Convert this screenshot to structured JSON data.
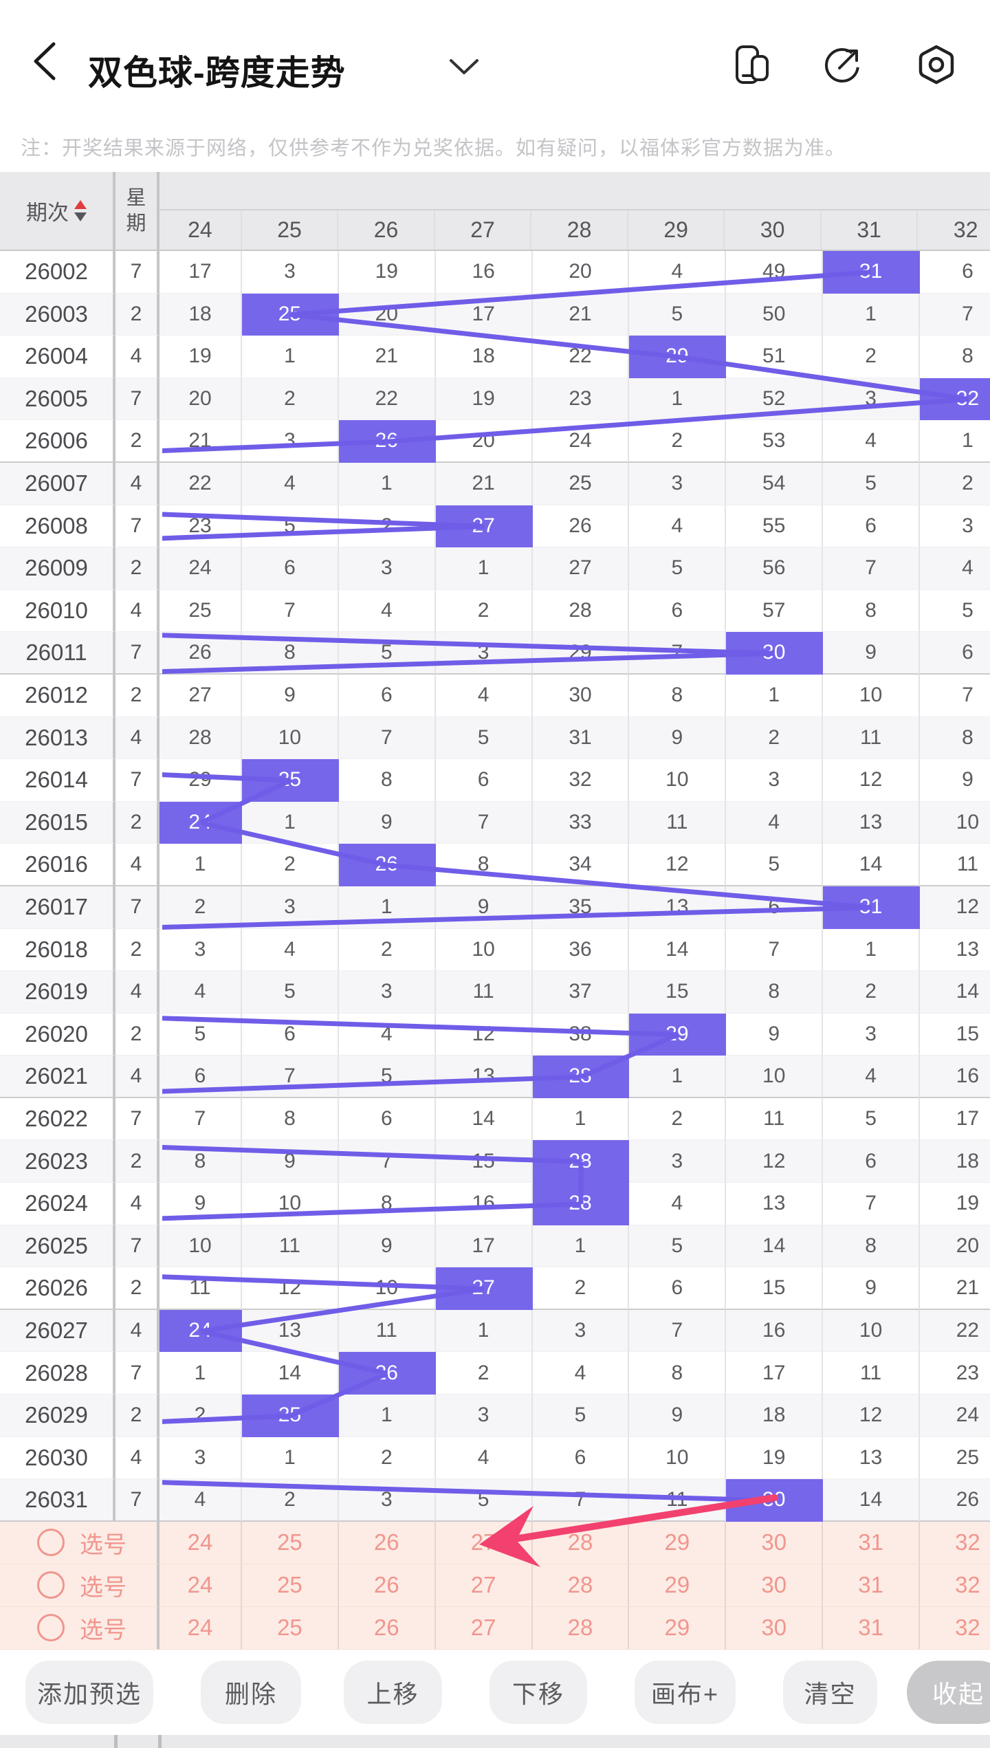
{
  "topbar": {
    "title": "双色球-跨度走势",
    "icons": [
      {
        "name": "cards-icon"
      },
      {
        "name": "share-icon"
      },
      {
        "name": "settings-icon"
      }
    ]
  },
  "note": "注：开奖结果来源于网络，仅供参考不作为兑奖依据。如有疑问，以福体彩官方数据为准。",
  "table": {
    "period_header": "期次",
    "week_header": "星期",
    "columns": [
      "24",
      "25",
      "26",
      "27",
      "28",
      "29",
      "30",
      "31",
      "32"
    ],
    "group_size": 5,
    "rows": [
      {
        "period": "26002",
        "week": "7",
        "cells": [
          "17",
          "3",
          "19",
          "16",
          "20",
          "4",
          "49",
          "31",
          "6"
        ],
        "hit": 31
      },
      {
        "period": "26003",
        "week": "2",
        "cells": [
          "18",
          "25",
          "20",
          "17",
          "21",
          "5",
          "50",
          "1",
          "7"
        ],
        "hit": 25
      },
      {
        "period": "26004",
        "week": "4",
        "cells": [
          "19",
          "1",
          "21",
          "18",
          "22",
          "29",
          "51",
          "2",
          "8"
        ],
        "hit": 29
      },
      {
        "period": "26005",
        "week": "7",
        "cells": [
          "20",
          "2",
          "22",
          "19",
          "23",
          "1",
          "52",
          "3",
          "32"
        ],
        "hit": 32
      },
      {
        "period": "26006",
        "week": "2",
        "cells": [
          "21",
          "3",
          "26",
          "20",
          "24",
          "2",
          "53",
          "4",
          "1"
        ],
        "hit": 26
      },
      {
        "period": "26007",
        "week": "4",
        "cells": [
          "22",
          "4",
          "1",
          "21",
          "25",
          "3",
          "54",
          "5",
          "2"
        ],
        "hit": null
      },
      {
        "period": "26008",
        "week": "7",
        "cells": [
          "23",
          "5",
          "2",
          "27",
          "26",
          "4",
          "55",
          "6",
          "3"
        ],
        "hit": 27
      },
      {
        "period": "26009",
        "week": "2",
        "cells": [
          "24",
          "6",
          "3",
          "1",
          "27",
          "5",
          "56",
          "7",
          "4"
        ],
        "hit": null
      },
      {
        "period": "26010",
        "week": "4",
        "cells": [
          "25",
          "7",
          "4",
          "2",
          "28",
          "6",
          "57",
          "8",
          "5"
        ],
        "hit": null
      },
      {
        "period": "26011",
        "week": "7",
        "cells": [
          "26",
          "8",
          "5",
          "3",
          "29",
          "7",
          "30",
          "9",
          "6"
        ],
        "hit": 30
      },
      {
        "period": "26012",
        "week": "2",
        "cells": [
          "27",
          "9",
          "6",
          "4",
          "30",
          "8",
          "1",
          "10",
          "7"
        ],
        "hit": null
      },
      {
        "period": "26013",
        "week": "4",
        "cells": [
          "28",
          "10",
          "7",
          "5",
          "31",
          "9",
          "2",
          "11",
          "8"
        ],
        "hit": null
      },
      {
        "period": "26014",
        "week": "7",
        "cells": [
          "29",
          "25",
          "8",
          "6",
          "32",
          "10",
          "3",
          "12",
          "9"
        ],
        "hit": 25
      },
      {
        "period": "26015",
        "week": "2",
        "cells": [
          "24",
          "1",
          "9",
          "7",
          "33",
          "11",
          "4",
          "13",
          "10"
        ],
        "hit": 24
      },
      {
        "period": "26016",
        "week": "4",
        "cells": [
          "1",
          "2",
          "26",
          "8",
          "34",
          "12",
          "5",
          "14",
          "11"
        ],
        "hit": 26
      },
      {
        "period": "26017",
        "week": "7",
        "cells": [
          "2",
          "3",
          "1",
          "9",
          "35",
          "13",
          "6",
          "31",
          "12"
        ],
        "hit": 31
      },
      {
        "period": "26018",
        "week": "2",
        "cells": [
          "3",
          "4",
          "2",
          "10",
          "36",
          "14",
          "7",
          "1",
          "13"
        ],
        "hit": null
      },
      {
        "period": "26019",
        "week": "4",
        "cells": [
          "4",
          "5",
          "3",
          "11",
          "37",
          "15",
          "8",
          "2",
          "14"
        ],
        "hit": null
      },
      {
        "period": "26020",
        "week": "2",
        "cells": [
          "5",
          "6",
          "4",
          "12",
          "38",
          "29",
          "9",
          "3",
          "15"
        ],
        "hit": 29
      },
      {
        "period": "26021",
        "week": "4",
        "cells": [
          "6",
          "7",
          "5",
          "13",
          "28",
          "1",
          "10",
          "4",
          "16"
        ],
        "hit": 28
      },
      {
        "period": "26022",
        "week": "7",
        "cells": [
          "7",
          "8",
          "6",
          "14",
          "1",
          "2",
          "11",
          "5",
          "17"
        ],
        "hit": null
      },
      {
        "period": "26023",
        "week": "2",
        "cells": [
          "8",
          "9",
          "7",
          "15",
          "28",
          "3",
          "12",
          "6",
          "18"
        ],
        "hit": 28
      },
      {
        "period": "26024",
        "week": "4",
        "cells": [
          "9",
          "10",
          "8",
          "16",
          "28",
          "4",
          "13",
          "7",
          "19"
        ],
        "hit": 28
      },
      {
        "period": "26025",
        "week": "7",
        "cells": [
          "10",
          "11",
          "9",
          "17",
          "1",
          "5",
          "14",
          "8",
          "20"
        ],
        "hit": null
      },
      {
        "period": "26026",
        "week": "2",
        "cells": [
          "11",
          "12",
          "10",
          "27",
          "2",
          "6",
          "15",
          "9",
          "21"
        ],
        "hit": 27
      },
      {
        "period": "26027",
        "week": "4",
        "cells": [
          "24",
          "13",
          "11",
          "1",
          "3",
          "7",
          "16",
          "10",
          "22"
        ],
        "hit": 24
      },
      {
        "period": "26028",
        "week": "7",
        "cells": [
          "1",
          "14",
          "26",
          "2",
          "4",
          "8",
          "17",
          "11",
          "23"
        ],
        "hit": 26
      },
      {
        "period": "26029",
        "week": "2",
        "cells": [
          "2",
          "25",
          "1",
          "3",
          "5",
          "9",
          "18",
          "12",
          "24"
        ],
        "hit": 25
      },
      {
        "period": "26030",
        "week": "4",
        "cells": [
          "3",
          "1",
          "2",
          "4",
          "6",
          "10",
          "19",
          "13",
          "25"
        ],
        "hit": null
      },
      {
        "period": "26031",
        "week": "7",
        "cells": [
          "4",
          "2",
          "3",
          "5",
          "7",
          "11",
          "30",
          "14",
          "26"
        ],
        "hit": 30
      }
    ]
  },
  "selection_rows": [
    {
      "label": "选号",
      "numbers": [
        "24",
        "25",
        "26",
        "27",
        "28",
        "29",
        "30",
        "31",
        "32"
      ]
    },
    {
      "label": "选号",
      "numbers": [
        "24",
        "25",
        "26",
        "27",
        "28",
        "29",
        "30",
        "31",
        "32"
      ]
    },
    {
      "label": "选号",
      "numbers": [
        "24",
        "25",
        "26",
        "27",
        "28",
        "29",
        "30",
        "31",
        "32"
      ]
    }
  ],
  "toolbar": {
    "buttons": [
      "添加预选",
      "删除",
      "上移",
      "下移",
      "画布+",
      "清空",
      "收起"
    ]
  },
  "colors": {
    "hit_cell": "#7666EA",
    "trend_line": "#6F5DE8",
    "arrow": "#F2416E",
    "selection_bg": "#FCECE5",
    "selection_text": "#F0968E",
    "sort_up": "#E03C3C",
    "sort_down": "#55555A"
  }
}
